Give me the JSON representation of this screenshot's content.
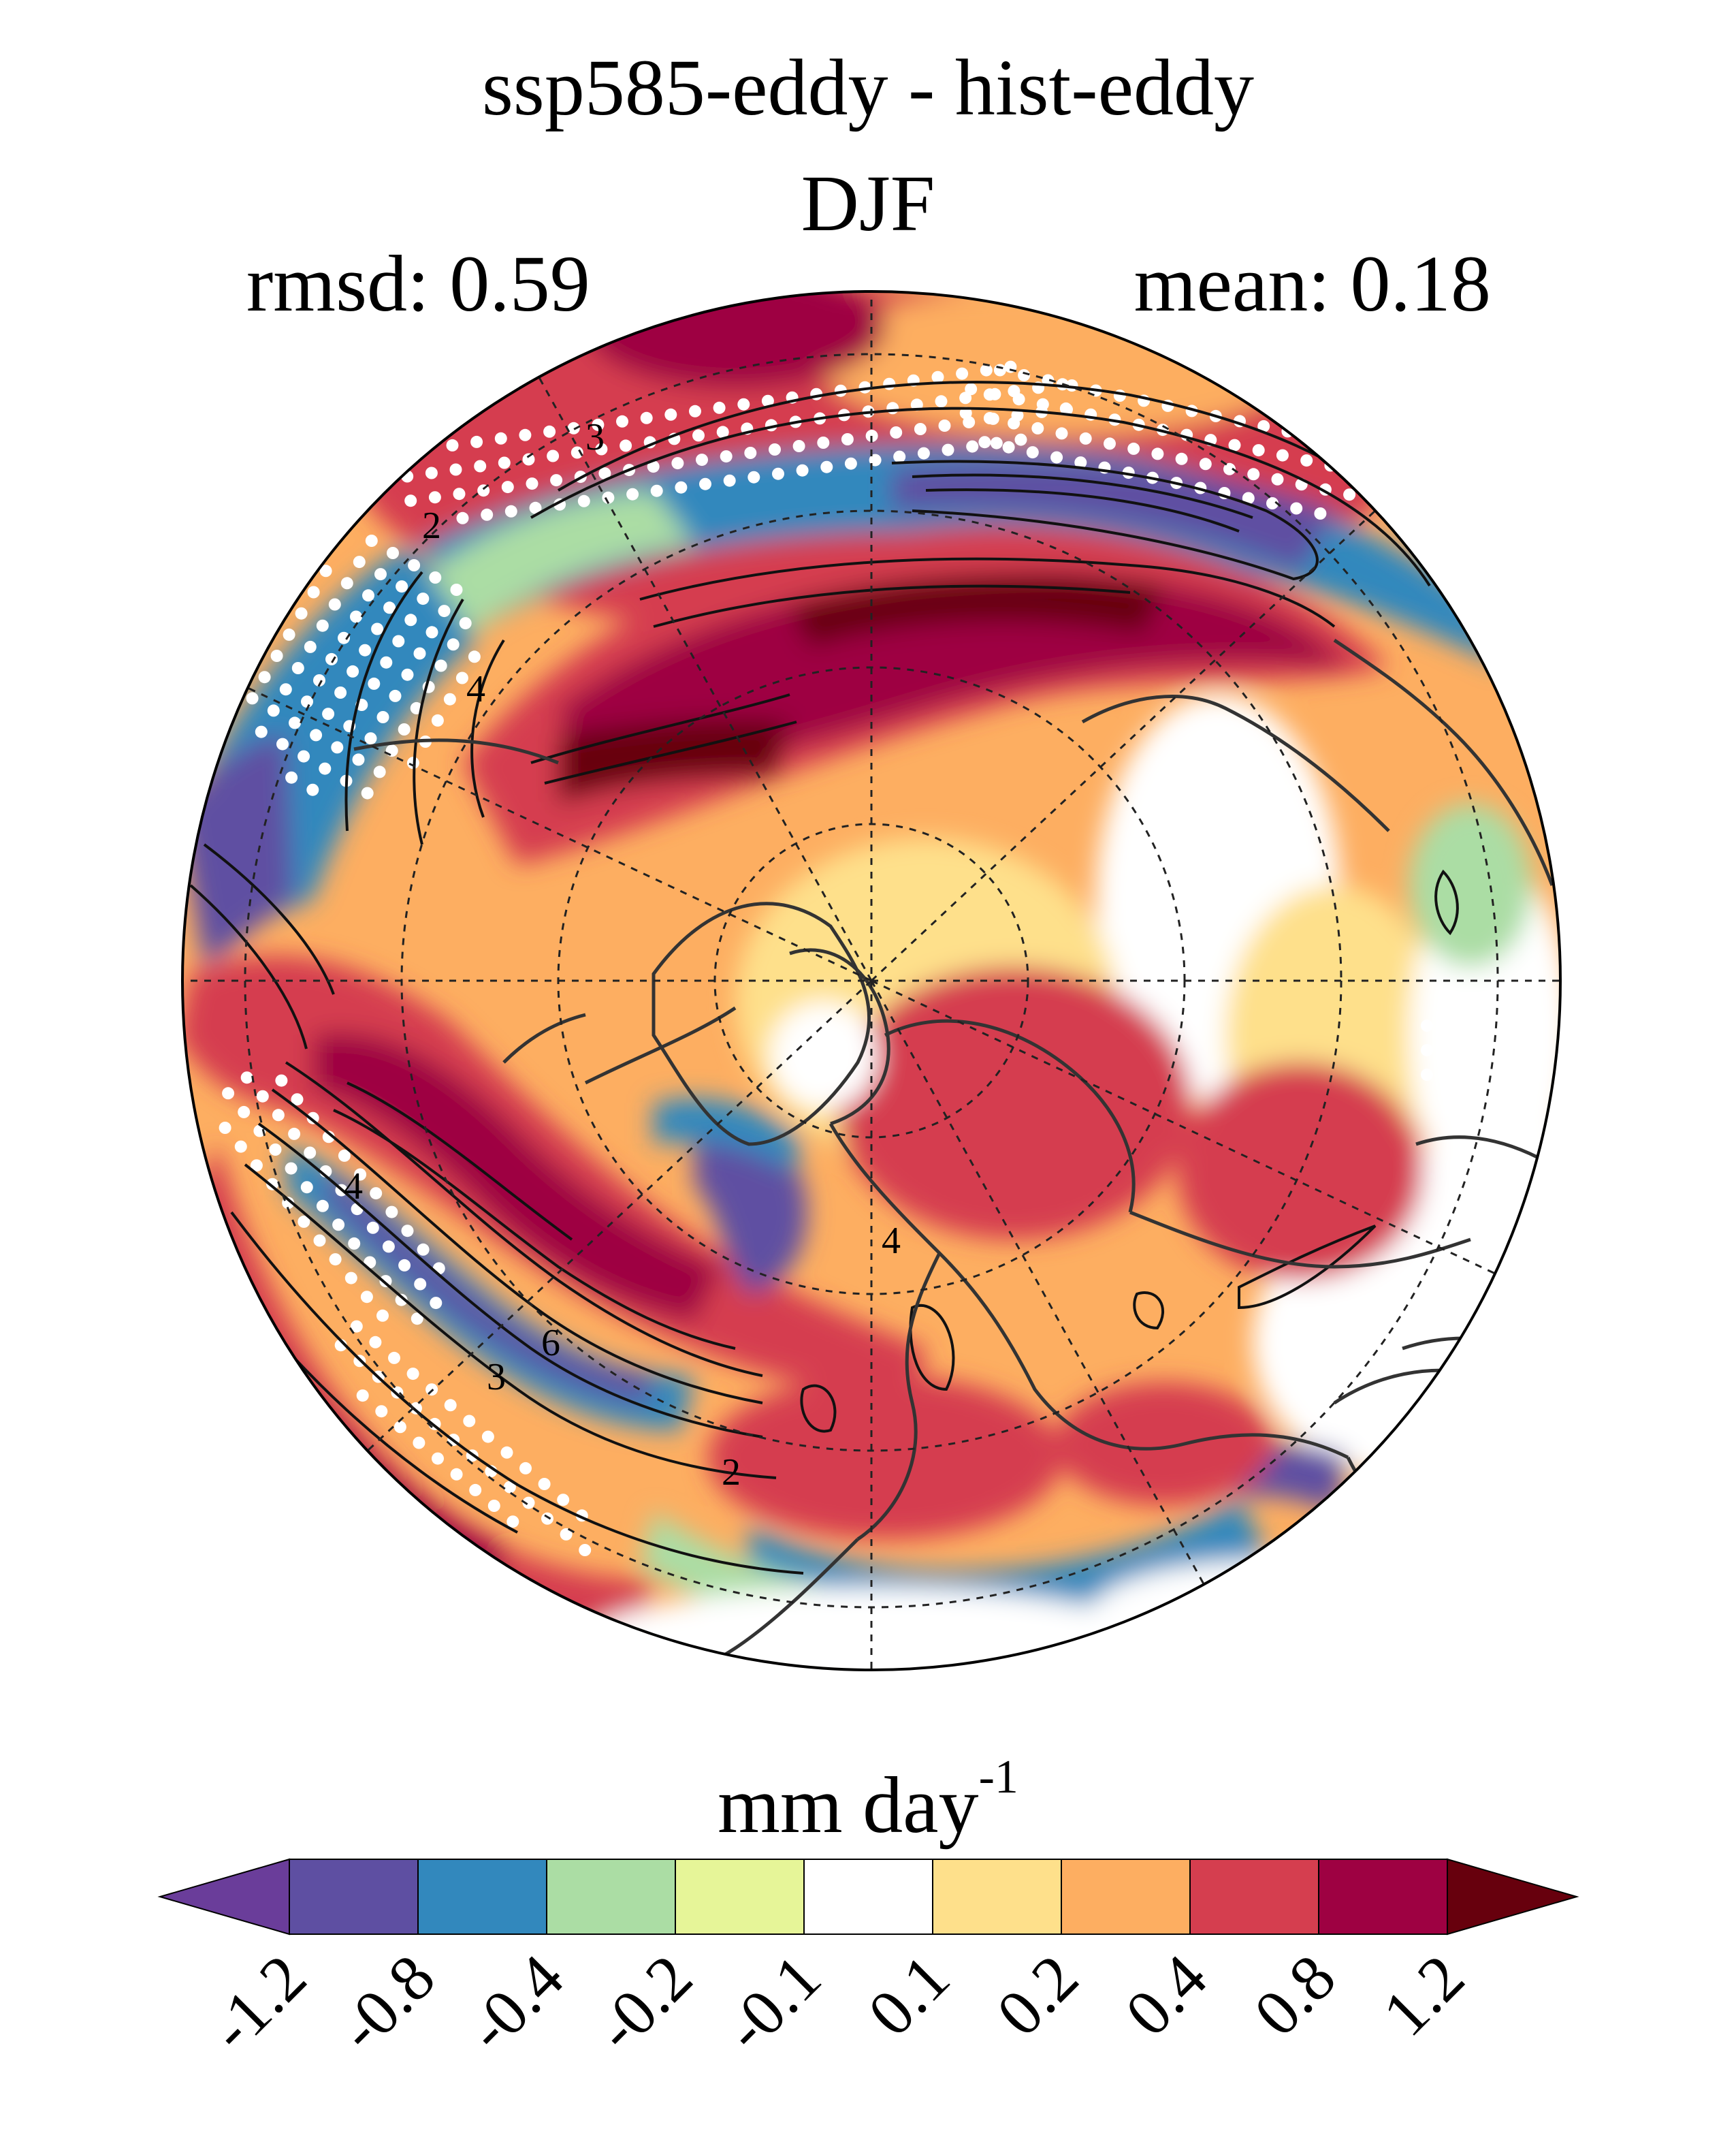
{
  "title": "ssp585-eddy - hist-eddy",
  "season": "DJF",
  "stats": {
    "rmsd": "rmsd: 0.59",
    "mean": "mean: 0.18"
  },
  "colorbar": {
    "unit_main": "mm day",
    "unit_exp": "-1",
    "colors": [
      "#5e4fa2",
      "#3288bd",
      "#abdda4",
      "#e6f598",
      "#ffffff",
      "#fee08b",
      "#fdae61",
      "#d53e4f",
      "#9e0142"
    ],
    "under_color": "#6a3d9a",
    "over_color": "#67000d",
    "ticks": [
      "-1.2",
      "-0.8",
      "-0.4",
      "-0.2",
      "-0.1",
      "0.1",
      "0.2",
      "0.4",
      "0.8",
      "1.2"
    ]
  },
  "contour_labels": [
    "3",
    "2",
    "4",
    "4",
    "6",
    "3",
    "2",
    "4"
  ]
}
